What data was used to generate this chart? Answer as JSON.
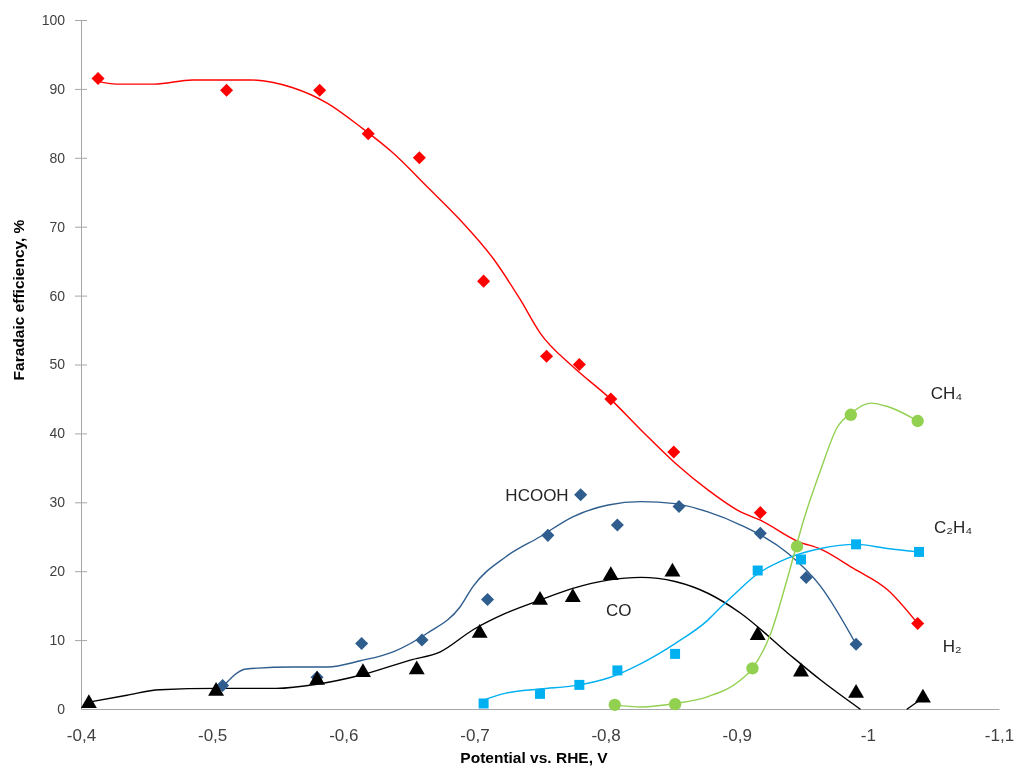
{
  "chart_data": {
    "type": "scatter",
    "xlabel": "Potential vs. RHE, V",
    "ylabel": "Faradaic efficiency, %",
    "xlim": [
      -0.4,
      -1.1
    ],
    "ylim": [
      0,
      100
    ],
    "xticks": [
      {
        "value": -0.4,
        "label": "-0,4"
      },
      {
        "value": -0.5,
        "label": "-0,5"
      },
      {
        "value": -0.6,
        "label": "-0,6"
      },
      {
        "value": -0.7,
        "label": "-0,7"
      },
      {
        "value": -0.8,
        "label": "-0,8"
      },
      {
        "value": -0.9,
        "label": "-0,9"
      },
      {
        "value": -1,
        "label": "-1"
      },
      {
        "value": -1.1,
        "label": "-1,1"
      }
    ],
    "yticks": [
      0,
      10,
      20,
      30,
      40,
      50,
      60,
      70,
      80,
      90,
      100
    ],
    "series": [
      {
        "name": "H₂",
        "marker": "diamond",
        "color": "#ff0000",
        "x": [
          -0.413,
          -0.511,
          -0.582,
          -0.619,
          -0.658,
          -0.707,
          -0.755,
          -0.78,
          -0.804,
          -0.852,
          -0.918,
          -1.038
        ],
        "values": [
          91.5,
          89.8,
          89.8,
          83.5,
          80.0,
          62.1,
          51.2,
          50.0,
          45.0,
          37.3,
          28.5,
          12.4
        ]
      },
      {
        "type": "line",
        "color": "#ff0000",
        "x": [
          -0.413,
          -0.427,
          -0.456,
          -0.485,
          -0.529,
          -0.561,
          -0.588,
          -0.613,
          -0.638,
          -0.664,
          -0.689,
          -0.715,
          -0.735,
          -0.75,
          -0.775,
          -0.802,
          -0.827,
          -0.853,
          -0.878,
          -0.903,
          -0.918,
          -0.947,
          -0.964,
          -0.989,
          -1.015,
          -1.038
        ],
        "values": [
          91.1,
          90.7,
          90.7,
          91.3,
          91.3,
          90.2,
          87.9,
          84.5,
          80.7,
          75.8,
          71.0,
          65.2,
          59.4,
          54.6,
          49.7,
          45.3,
          40.5,
          35.7,
          31.8,
          28.6,
          27.4,
          24.3,
          23.2,
          20.4,
          17.3,
          12.4
        ]
      },
      {
        "name": "HCOOH",
        "marker": "diamond",
        "color": "#2e5d8e",
        "x": [
          -0.508,
          -0.58,
          -0.614,
          -0.66,
          -0.71,
          -0.756,
          -0.781,
          -0.809,
          -0.856,
          -0.918,
          -0.953,
          -0.991
        ],
        "values": [
          3.4,
          4.6,
          9.5,
          10.0,
          15.9,
          25.2,
          31.1,
          26.7,
          29.4,
          25.5,
          19.1,
          9.4
        ]
      },
      {
        "type": "line",
        "color": "#2e5d8e",
        "x": [
          -0.508,
          -0.526,
          -0.562,
          -0.588,
          -0.613,
          -0.638,
          -0.664,
          -0.689,
          -0.699,
          -0.724,
          -0.75,
          -0.775,
          -0.802,
          -0.827,
          -0.853,
          -0.878,
          -0.903,
          -0.939,
          -0.964,
          -0.991
        ],
        "values": [
          3.2,
          5.8,
          6.1,
          6.1,
          7.0,
          8.3,
          11.0,
          14.8,
          17.8,
          22.1,
          25.0,
          27.9,
          29.6,
          30.1,
          29.8,
          28.6,
          26.7,
          22.6,
          17.8,
          9.4
        ]
      },
      {
        "name": "CO",
        "marker": "triangle",
        "color": "#000000",
        "x": [
          -0.406,
          -0.503,
          -0.58,
          -0.615,
          -0.656,
          -0.704,
          -0.75,
          -0.775,
          -0.804,
          -0.851,
          -0.916,
          -0.949,
          -0.991,
          -1.042
        ],
        "values": [
          0.8,
          2.6,
          4.2,
          5.3,
          5.7,
          11.0,
          15.8,
          16.2,
          19.4,
          19.9,
          10.7,
          5.4,
          2.3,
          1.6
        ]
      },
      {
        "type": "line",
        "color": "#000000",
        "x": [
          -0.406,
          -0.435,
          -0.46,
          -0.503,
          -0.549,
          -0.58,
          -0.613,
          -0.651,
          -0.674,
          -0.699,
          -0.724,
          -0.75,
          -0.775,
          -0.802,
          -0.827,
          -0.853,
          -0.878,
          -0.903,
          -0.939,
          -0.964,
          -0.994,
          -1.011,
          -1.03,
          -1.042
        ],
        "values": [
          1.0,
          2.0,
          2.8,
          3.0,
          3.0,
          3.6,
          4.9,
          7.1,
          8.3,
          11.5,
          13.9,
          15.8,
          17.5,
          18.7,
          19.1,
          18.5,
          16.8,
          13.9,
          8.1,
          4.2,
          0,
          null,
          0,
          1.6
        ]
      },
      {
        "name": "C₂H₄",
        "marker": "square",
        "color": "#00b0f0",
        "x": [
          -0.707,
          -0.75,
          -0.78,
          -0.809,
          -0.853,
          -0.916,
          -0.949,
          -0.991,
          -1.039
        ],
        "values": [
          0.8,
          2.2,
          3.5,
          5.6,
          8.0,
          20.1,
          21.7,
          23.9,
          22.8
        ]
      },
      {
        "type": "line",
        "color": "#00b0f0",
        "x": [
          -0.707,
          -0.724,
          -0.75,
          -0.78,
          -0.802,
          -0.827,
          -0.853,
          -0.878,
          -0.888,
          -0.903,
          -0.913,
          -0.939,
          -0.964,
          -0.991,
          -1.015,
          -1.039
        ],
        "values": [
          1.3,
          2.3,
          2.9,
          3.5,
          4.5,
          6.6,
          9.5,
          12.9,
          14.8,
          17.5,
          19.2,
          21.9,
          23.3,
          23.9,
          23.3,
          22.8
        ]
      },
      {
        "name": "CH₄",
        "marker": "circle",
        "color": "#92d050",
        "x": [
          -0.807,
          -0.853,
          -0.912,
          -0.946,
          -0.987,
          -1.038
        ],
        "values": [
          0.6,
          0.7,
          5.9,
          23.6,
          42.7,
          41.8
        ]
      },
      {
        "type": "line",
        "color": "#92d050",
        "x": [
          -0.807,
          -0.827,
          -0.853,
          -0.878,
          -0.903,
          -0.912,
          -0.926,
          -0.939,
          -0.951,
          -0.964,
          -0.977,
          -0.987,
          -1.002,
          -1.015,
          -1.038
        ],
        "values": [
          0.6,
          0.3,
          0.8,
          1.8,
          4.2,
          5.9,
          11.0,
          19.2,
          27.4,
          34.7,
          41.0,
          42.9,
          44.4,
          43.9,
          41.8
        ]
      }
    ]
  }
}
